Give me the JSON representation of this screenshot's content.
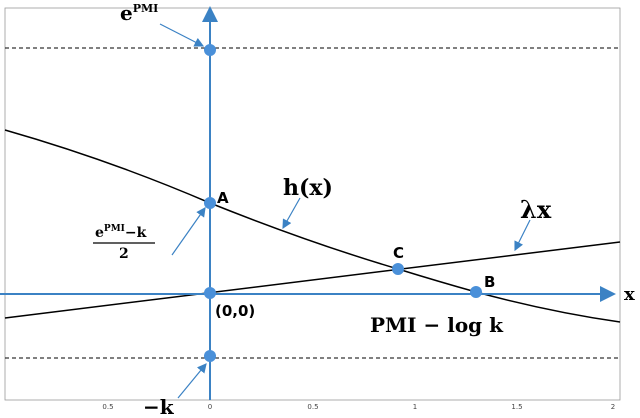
{
  "x_ticks": [
    "0.5",
    "0",
    "0.5",
    "1",
    "1.5",
    "2"
  ],
  "labels": {
    "e_pmi_base": "e",
    "e_pmi_sup": "PMI",
    "point_a": "A",
    "h_x": "h(x)",
    "lambda_x": "λx",
    "point_c": "C",
    "point_b": "B",
    "origin": "(0,0)",
    "pmi_log_k": "PMI − log k",
    "x_axis": "x",
    "neg_k": "−k",
    "fraction_top_base": "e",
    "fraction_top_sup": "PMI",
    "fraction_top_rest": "−k",
    "fraction_bottom": "2"
  }
}
